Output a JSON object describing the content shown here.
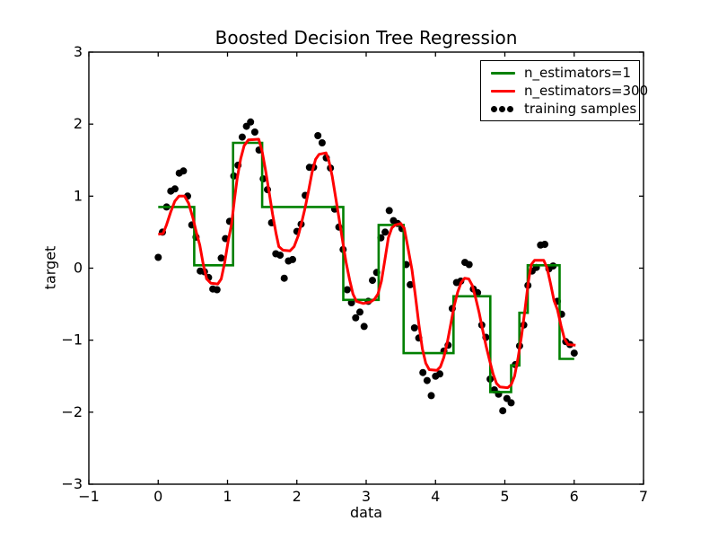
{
  "figure": {
    "title": "Boosted Decision Tree Regression",
    "xlabel": "data",
    "ylabel": "target",
    "background": "#ffffff",
    "frame_color": "#000000"
  },
  "legend": {
    "position": "upper right",
    "items": [
      {
        "label": "n_estimators=1",
        "type": "line",
        "color": "#008000"
      },
      {
        "label": "n_estimators=300",
        "type": "line",
        "color": "#ff0000"
      },
      {
        "label": "training samples",
        "type": "dots",
        "color": "#000000"
      }
    ]
  },
  "chart_data": {
    "type": "line",
    "title": "Boosted Decision Tree Regression",
    "xlabel": "data",
    "ylabel": "target",
    "xlim": [
      -1,
      7
    ],
    "ylim": [
      -3,
      3
    ],
    "xticks": [
      -1,
      0,
      1,
      2,
      3,
      4,
      5,
      6,
      7
    ],
    "yticks": [
      -3,
      -2,
      -1,
      0,
      1,
      2,
      3
    ],
    "grid": false,
    "legend_position": "upper right",
    "series": [
      {
        "name": "training samples",
        "type": "scatter",
        "color": "#000000",
        "marker_radius": 4,
        "points": [
          [
            0.0,
            0.15
          ],
          [
            0.061,
            0.5
          ],
          [
            0.121,
            0.85
          ],
          [
            0.182,
            1.07
          ],
          [
            0.242,
            1.1
          ],
          [
            0.303,
            1.32
          ],
          [
            0.364,
            1.35
          ],
          [
            0.424,
            1.0
          ],
          [
            0.485,
            0.6
          ],
          [
            0.545,
            0.43
          ],
          [
            0.606,
            -0.04
          ],
          [
            0.667,
            -0.05
          ],
          [
            0.727,
            -0.13
          ],
          [
            0.788,
            -0.29
          ],
          [
            0.848,
            -0.3
          ],
          [
            0.909,
            0.14
          ],
          [
            0.97,
            0.41
          ],
          [
            1.03,
            0.65
          ],
          [
            1.091,
            1.28
          ],
          [
            1.152,
            1.43
          ],
          [
            1.212,
            1.82
          ],
          [
            1.273,
            1.97
          ],
          [
            1.333,
            2.03
          ],
          [
            1.394,
            1.89
          ],
          [
            1.455,
            1.64
          ],
          [
            1.515,
            1.24
          ],
          [
            1.576,
            1.09
          ],
          [
            1.636,
            0.63
          ],
          [
            1.697,
            0.2
          ],
          [
            1.758,
            0.18
          ],
          [
            1.818,
            -0.14
          ],
          [
            1.879,
            0.1
          ],
          [
            1.939,
            0.12
          ],
          [
            2.0,
            0.51
          ],
          [
            2.061,
            0.61
          ],
          [
            2.121,
            1.01
          ],
          [
            2.182,
            1.4
          ],
          [
            2.242,
            1.4
          ],
          [
            2.303,
            1.84
          ],
          [
            2.364,
            1.74
          ],
          [
            2.424,
            1.53
          ],
          [
            2.485,
            1.39
          ],
          [
            2.545,
            0.82
          ],
          [
            2.606,
            0.57
          ],
          [
            2.667,
            0.26
          ],
          [
            2.727,
            -0.3
          ],
          [
            2.788,
            -0.48
          ],
          [
            2.848,
            -0.69
          ],
          [
            2.909,
            -0.61
          ],
          [
            2.97,
            -0.81
          ],
          [
            3.03,
            -0.46
          ],
          [
            3.091,
            -0.17
          ],
          [
            3.152,
            -0.06
          ],
          [
            3.212,
            0.42
          ],
          [
            3.273,
            0.5
          ],
          [
            3.333,
            0.8
          ],
          [
            3.394,
            0.66
          ],
          [
            3.455,
            0.62
          ],
          [
            3.515,
            0.55
          ],
          [
            3.576,
            0.05
          ],
          [
            3.636,
            -0.23
          ],
          [
            3.697,
            -0.83
          ],
          [
            3.758,
            -0.97
          ],
          [
            3.818,
            -1.45
          ],
          [
            3.879,
            -1.56
          ],
          [
            3.939,
            -1.77
          ],
          [
            4.0,
            -1.5
          ],
          [
            4.061,
            -1.47
          ],
          [
            4.121,
            -1.15
          ],
          [
            4.182,
            -1.07
          ],
          [
            4.242,
            -0.56
          ],
          [
            4.303,
            -0.2
          ],
          [
            4.364,
            -0.18
          ],
          [
            4.424,
            0.08
          ],
          [
            4.485,
            0.05
          ],
          [
            4.545,
            -0.29
          ],
          [
            4.606,
            -0.34
          ],
          [
            4.667,
            -0.79
          ],
          [
            4.727,
            -0.96
          ],
          [
            4.788,
            -1.54
          ],
          [
            4.848,
            -1.69
          ],
          [
            4.909,
            -1.75
          ],
          [
            4.97,
            -1.98
          ],
          [
            5.03,
            -1.81
          ],
          [
            5.091,
            -1.87
          ],
          [
            5.152,
            -1.34
          ],
          [
            5.212,
            -1.08
          ],
          [
            5.273,
            -0.79
          ],
          [
            5.333,
            -0.24
          ],
          [
            5.394,
            -0.04
          ],
          [
            5.455,
            0.01
          ],
          [
            5.515,
            0.32
          ],
          [
            5.576,
            0.33
          ],
          [
            5.636,
            -0.01
          ],
          [
            5.697,
            0.03
          ],
          [
            5.758,
            -0.46
          ],
          [
            5.818,
            -0.64
          ],
          [
            5.879,
            -1.02
          ],
          [
            5.939,
            -1.06
          ],
          [
            6.0,
            -1.18
          ]
        ]
      },
      {
        "name": "n_estimators=1",
        "type": "step",
        "color": "#008000",
        "linewidth": 2.6,
        "steps": [
          [
            0.0,
            0.52,
            0.85
          ],
          [
            0.52,
            1.08,
            0.04
          ],
          [
            1.08,
            1.5,
            1.74
          ],
          [
            1.5,
            2.67,
            0.85
          ],
          [
            2.67,
            3.18,
            -0.44
          ],
          [
            3.18,
            3.54,
            0.6
          ],
          [
            3.54,
            4.26,
            -1.18
          ],
          [
            4.26,
            4.79,
            -0.39
          ],
          [
            4.79,
            5.09,
            -1.72
          ],
          [
            5.09,
            5.21,
            -1.35
          ],
          [
            5.21,
            5.33,
            -0.62
          ],
          [
            5.33,
            5.79,
            0.04
          ],
          [
            5.79,
            6.0,
            -1.26
          ]
        ]
      },
      {
        "name": "n_estimators=300",
        "type": "line",
        "color": "#ff0000",
        "linewidth": 3,
        "points": [
          [
            0.0,
            0.47
          ],
          [
            0.07,
            0.48
          ],
          [
            0.12,
            0.6
          ],
          [
            0.18,
            0.78
          ],
          [
            0.24,
            0.93
          ],
          [
            0.3,
            1.0
          ],
          [
            0.38,
            1.0
          ],
          [
            0.44,
            0.9
          ],
          [
            0.5,
            0.7
          ],
          [
            0.55,
            0.5
          ],
          [
            0.6,
            0.32
          ],
          [
            0.65,
            0.05
          ],
          [
            0.7,
            -0.15
          ],
          [
            0.76,
            -0.21
          ],
          [
            0.86,
            -0.22
          ],
          [
            0.91,
            -0.15
          ],
          [
            0.96,
            0.08
          ],
          [
            1.01,
            0.38
          ],
          [
            1.06,
            0.62
          ],
          [
            1.1,
            0.95
          ],
          [
            1.14,
            1.25
          ],
          [
            1.19,
            1.52
          ],
          [
            1.24,
            1.7
          ],
          [
            1.3,
            1.78
          ],
          [
            1.45,
            1.79
          ],
          [
            1.5,
            1.62
          ],
          [
            1.55,
            1.35
          ],
          [
            1.6,
            1.05
          ],
          [
            1.65,
            0.75
          ],
          [
            1.7,
            0.48
          ],
          [
            1.74,
            0.3
          ],
          [
            1.8,
            0.25
          ],
          [
            1.9,
            0.24
          ],
          [
            1.96,
            0.3
          ],
          [
            2.02,
            0.45
          ],
          [
            2.07,
            0.64
          ],
          [
            2.12,
            0.84
          ],
          [
            2.17,
            1.08
          ],
          [
            2.22,
            1.33
          ],
          [
            2.27,
            1.51
          ],
          [
            2.32,
            1.58
          ],
          [
            2.42,
            1.6
          ],
          [
            2.46,
            1.5
          ],
          [
            2.51,
            1.28
          ],
          [
            2.56,
            0.98
          ],
          [
            2.61,
            0.68
          ],
          [
            2.66,
            0.38
          ],
          [
            2.71,
            0.08
          ],
          [
            2.76,
            -0.16
          ],
          [
            2.81,
            -0.36
          ],
          [
            2.86,
            -0.46
          ],
          [
            2.96,
            -0.49
          ],
          [
            3.06,
            -0.47
          ],
          [
            3.12,
            -0.43
          ],
          [
            3.17,
            -0.36
          ],
          [
            3.22,
            -0.18
          ],
          [
            3.27,
            0.12
          ],
          [
            3.32,
            0.42
          ],
          [
            3.37,
            0.56
          ],
          [
            3.42,
            0.6
          ],
          [
            3.5,
            0.62
          ],
          [
            3.55,
            0.55
          ],
          [
            3.6,
            0.3
          ],
          [
            3.66,
            -0.02
          ],
          [
            3.71,
            -0.38
          ],
          [
            3.76,
            -0.78
          ],
          [
            3.81,
            -1.12
          ],
          [
            3.86,
            -1.32
          ],
          [
            3.91,
            -1.41
          ],
          [
            4.02,
            -1.42
          ],
          [
            4.07,
            -1.37
          ],
          [
            4.12,
            -1.24
          ],
          [
            4.17,
            -1.03
          ],
          [
            4.22,
            -0.78
          ],
          [
            4.27,
            -0.52
          ],
          [
            4.32,
            -0.33
          ],
          [
            4.37,
            -0.2
          ],
          [
            4.42,
            -0.14
          ],
          [
            4.48,
            -0.15
          ],
          [
            4.53,
            -0.24
          ],
          [
            4.58,
            -0.42
          ],
          [
            4.63,
            -0.62
          ],
          [
            4.68,
            -0.86
          ],
          [
            4.73,
            -1.08
          ],
          [
            4.78,
            -1.28
          ],
          [
            4.83,
            -1.47
          ],
          [
            4.88,
            -1.6
          ],
          [
            4.93,
            -1.65
          ],
          [
            5.04,
            -1.66
          ],
          [
            5.09,
            -1.62
          ],
          [
            5.14,
            -1.5
          ],
          [
            5.19,
            -1.25
          ],
          [
            5.24,
            -0.95
          ],
          [
            5.29,
            -0.58
          ],
          [
            5.34,
            -0.18
          ],
          [
            5.38,
            0.05
          ],
          [
            5.43,
            0.11
          ],
          [
            5.56,
            0.11
          ],
          [
            5.61,
            0.0
          ],
          [
            5.66,
            -0.22
          ],
          [
            5.71,
            -0.45
          ],
          [
            5.76,
            -0.58
          ],
          [
            5.81,
            -0.8
          ],
          [
            5.86,
            -0.98
          ],
          [
            5.91,
            -1.06
          ],
          [
            6.02,
            -1.07
          ]
        ]
      }
    ]
  }
}
